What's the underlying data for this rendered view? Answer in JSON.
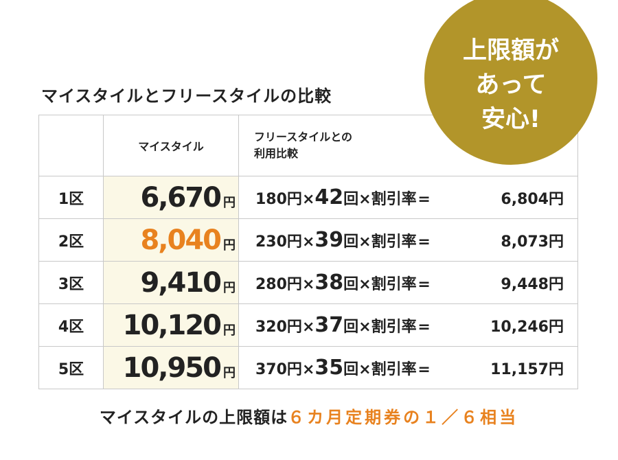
{
  "title": "マイスタイルとフリースタイルの比較",
  "badge": {
    "lines": [
      "上限額が",
      "あって",
      "安心!"
    ]
  },
  "table": {
    "header": {
      "col1": "",
      "col2": "マイスタイル",
      "col3_line1": "フリースタイルとの",
      "col3_line2": "利用比較"
    },
    "rows": [
      {
        "ward": "1区",
        "price": "6,670",
        "yen": "円",
        "unit": "180円",
        "times": "×",
        "count": "42",
        "kai": "回",
        "rest": "×割引率",
        "eq": "=",
        "total": "6,804円",
        "highlight": false
      },
      {
        "ward": "2区",
        "price": "8,040",
        "yen": "円",
        "unit": "230円",
        "times": "×",
        "count": "39",
        "kai": "回",
        "rest": "×割引率",
        "eq": "=",
        "total": "8,073円",
        "highlight": true
      },
      {
        "ward": "3区",
        "price": "9,410",
        "yen": "円",
        "unit": "280円",
        "times": "×",
        "count": "38",
        "kai": "回",
        "rest": "×割引率",
        "eq": "=",
        "total": "9,448円",
        "highlight": false
      },
      {
        "ward": "4区",
        "price": "10,120",
        "yen": "円",
        "unit": "320円",
        "times": "×",
        "count": "37",
        "kai": "回",
        "rest": "×割引率",
        "eq": "=",
        "total": "10,246円",
        "highlight": false
      },
      {
        "ward": "5区",
        "price": "10,950",
        "yen": "円",
        "unit": "370円",
        "times": "×",
        "count": "35",
        "kai": "回",
        "rest": "×割引率",
        "eq": "=",
        "total": "11,157円",
        "highlight": false
      }
    ]
  },
  "footer": {
    "prefix": "マイスタイルの上限額は",
    "highlight": "６カ月定期券の１／６相当"
  },
  "colors": {
    "accent": "#e8821f",
    "badge": "#b2952a",
    "price_bg": "#fbf8e6"
  }
}
